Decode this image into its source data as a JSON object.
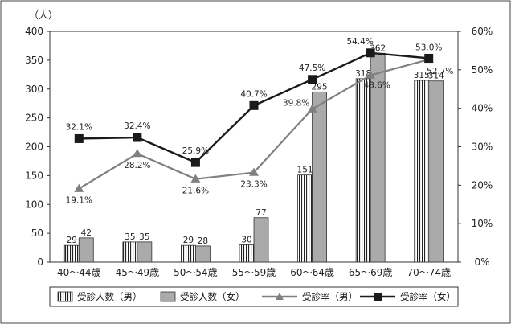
{
  "chart_data": {
    "type": "bar",
    "y_unit_label": "（人）",
    "categories": [
      "40～44歳",
      "45～49歳",
      "50～54歳",
      "55～59歳",
      "60～64歳",
      "65～69歳",
      "70～74歳"
    ],
    "ylim_left": [
      0,
      400
    ],
    "yticks_left": [
      "0",
      "50",
      "100",
      "150",
      "200",
      "250",
      "300",
      "350",
      "400"
    ],
    "ylim_right": [
      0,
      60
    ],
    "yticks_right": [
      "0%",
      "10%",
      "20%",
      "30%",
      "40%",
      "50%",
      "60%"
    ],
    "grid": false,
    "legend_position": "bottom",
    "bar_series": [
      {
        "name": "受診人数（男）",
        "values": [
          29,
          35,
          29,
          30,
          151,
          318,
          315
        ],
        "labels": [
          "29",
          "35",
          "29",
          "30",
          "151",
          "318",
          "315"
        ],
        "pattern": "vertical-stripes"
      },
      {
        "name": "受診人数（女）",
        "values": [
          42,
          35,
          28,
          77,
          295,
          362,
          314
        ],
        "labels": [
          "42",
          "35",
          "28",
          "77",
          "295",
          "362",
          "314"
        ],
        "color": "#aaaaaa"
      }
    ],
    "line_series": [
      {
        "name": "受診率（男）",
        "values": [
          19.1,
          28.2,
          21.6,
          23.3,
          39.8,
          48.6,
          52.7
        ],
        "labels": [
          "19.1%",
          "28.2%",
          "21.6%",
          "23.3%",
          "39.8%",
          "48.6%",
          "52.7%"
        ],
        "color": "#808080",
        "marker": "triangle"
      },
      {
        "name": "受診率（女）",
        "values": [
          32.1,
          32.4,
          25.9,
          40.7,
          47.5,
          54.4,
          53.0
        ],
        "labels": [
          "32.1%",
          "32.4%",
          "25.9%",
          "40.7%",
          "47.5%",
          "54.4%",
          "53.0%"
        ],
        "color": "#1a1a1a",
        "marker": "square"
      }
    ]
  }
}
